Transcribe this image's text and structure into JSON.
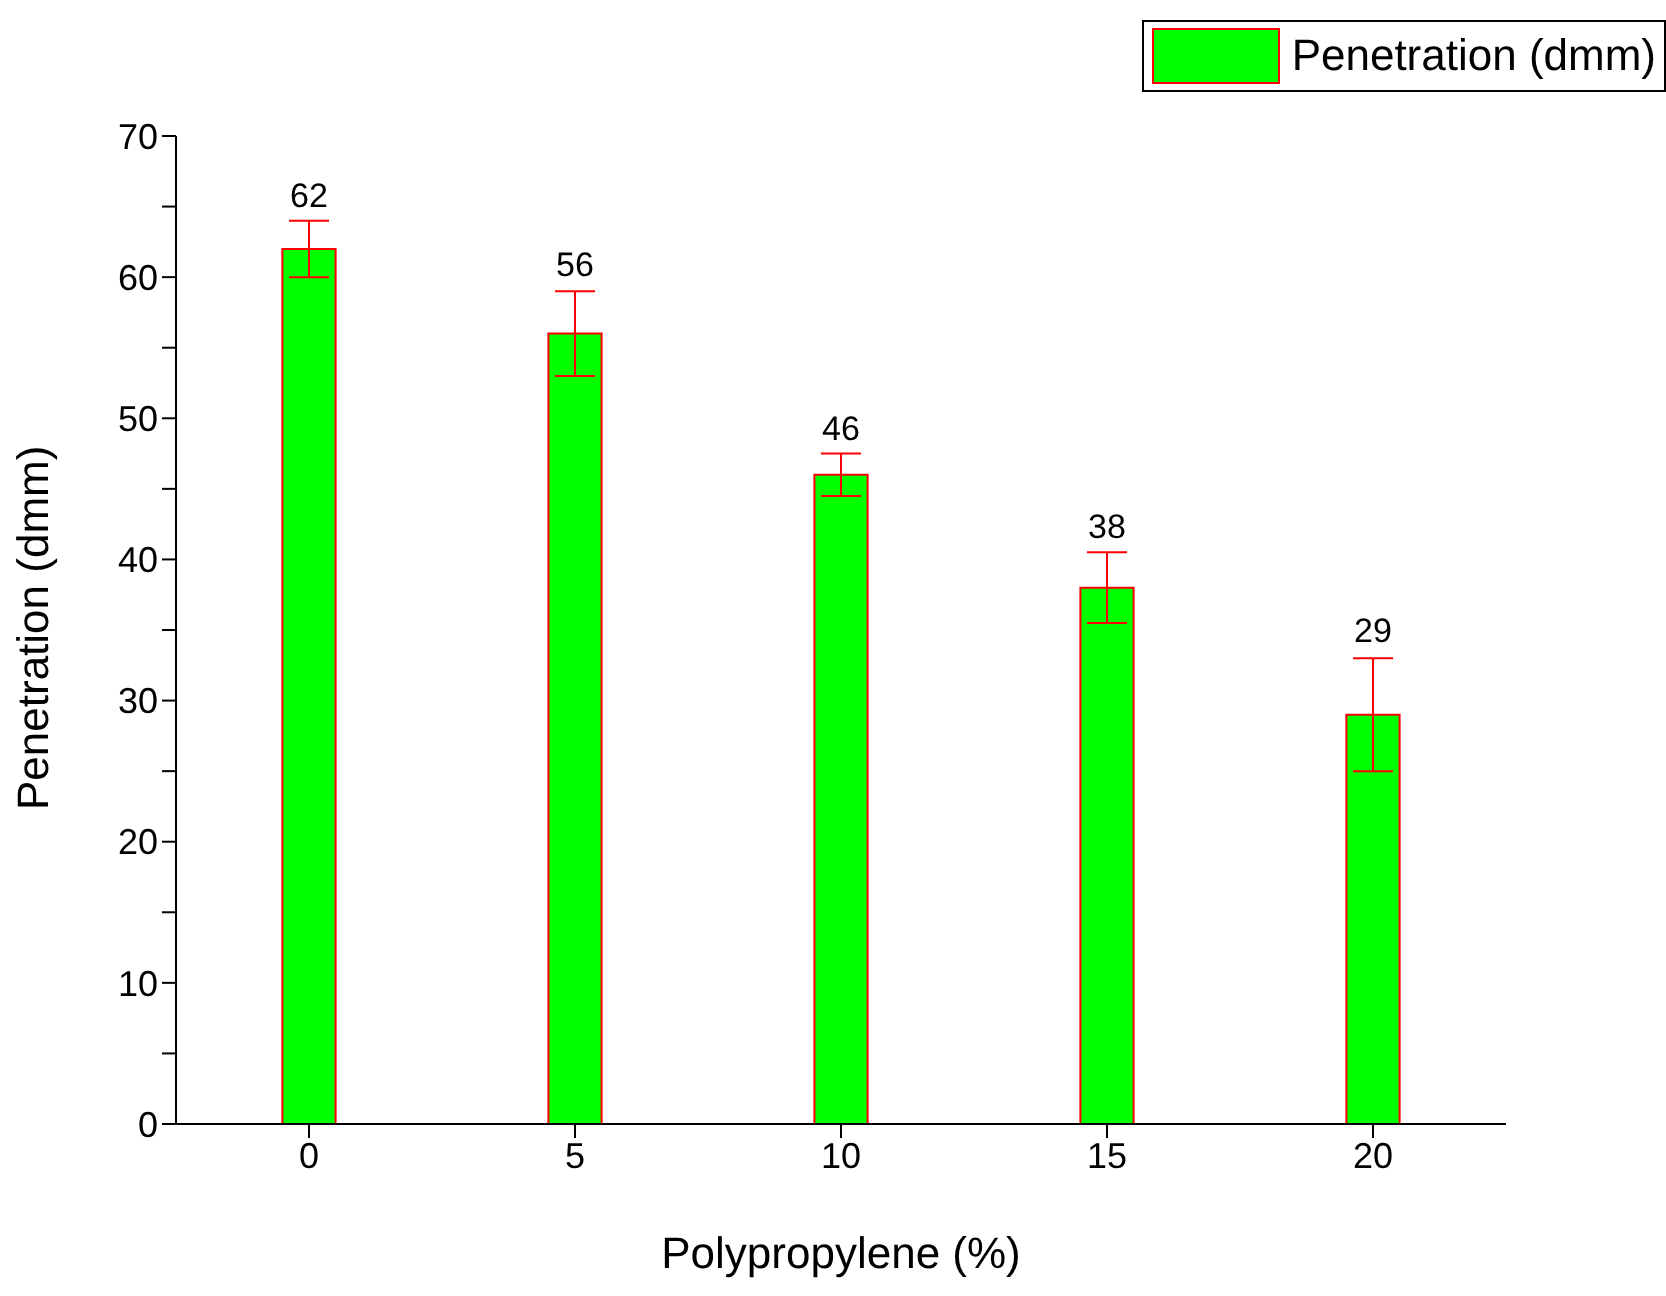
{
  "chart_data": {
    "type": "bar",
    "xlabel": "Polypropylene (%)",
    "ylabel": "Penetration (dmm)",
    "categories": [
      "0",
      "5",
      "10",
      "15",
      "20"
    ],
    "series": [
      {
        "name": "Penetration (dmm)",
        "color": "#00ff00",
        "values": [
          62,
          56,
          46,
          38,
          29
        ],
        "errors": [
          2,
          3,
          1.5,
          2.5,
          4
        ]
      }
    ],
    "ylim": [
      0,
      70
    ],
    "yticks": [
      0,
      {
        "value": 5,
        "label": null
      },
      10,
      {
        "value": 15,
        "label": null
      },
      20,
      {
        "value": 25,
        "label": null
      },
      30,
      {
        "value": 35,
        "label": null
      },
      40,
      {
        "value": 45,
        "label": null
      },
      50,
      {
        "value": 55,
        "label": null
      },
      60,
      {
        "value": 65,
        "label": null
      },
      70
    ],
    "data_labels": true,
    "legend": "top right",
    "grid": false
  }
}
